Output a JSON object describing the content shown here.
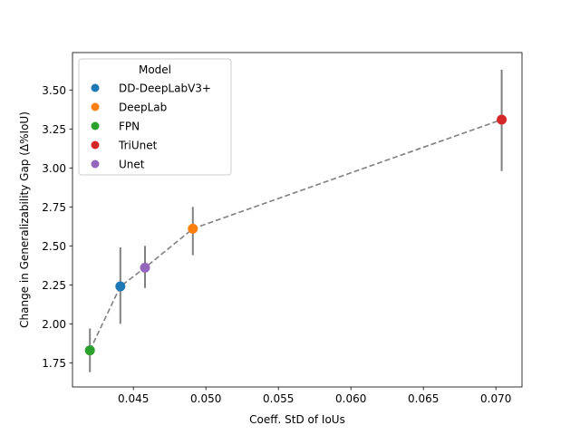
{
  "chart_data": {
    "type": "scatter",
    "xlabel": "Coeff. StD of IoUs",
    "ylabel": "Change in Generalizability Gap (Δ%IoU)",
    "xlim": [
      0.0408,
      0.0718
    ],
    "ylim": [
      1.595,
      3.74
    ],
    "x_ticks": [
      0.045,
      0.05,
      0.055,
      0.06,
      0.065,
      0.07
    ],
    "x_tick_labels": [
      "0.045",
      "0.050",
      "0.055",
      "0.060",
      "0.065",
      "0.070"
    ],
    "y_ticks": [
      1.75,
      2.0,
      2.25,
      2.5,
      2.75,
      3.0,
      3.25,
      3.5
    ],
    "y_tick_labels": [
      "1.75",
      "2.00",
      "2.25",
      "2.50",
      "2.75",
      "3.00",
      "3.25",
      "3.50"
    ],
    "grid": false,
    "legend": {
      "title": "Model",
      "placement": "top-left"
    },
    "line": {
      "style": "dashed",
      "color": "#808080"
    },
    "errorbar_color": "#808080",
    "points": [
      {
        "name": "DD-DeepLabV3+",
        "x": 0.0441,
        "y": 2.24,
        "err_low": 2.0,
        "err_high": 2.49,
        "color": "#1f77b4"
      },
      {
        "name": "DeepLab",
        "x": 0.0491,
        "y": 2.61,
        "err_low": 2.44,
        "err_high": 2.75,
        "color": "#ff7f0e"
      },
      {
        "name": "FPN",
        "x": 0.042,
        "y": 1.83,
        "err_low": 1.69,
        "err_high": 1.97,
        "color": "#2ca02c"
      },
      {
        "name": "TriUnet",
        "x": 0.0704,
        "y": 3.31,
        "err_low": 2.98,
        "err_high": 3.63,
        "color": "#d62728"
      },
      {
        "name": "Unet",
        "x": 0.0458,
        "y": 2.36,
        "err_low": 2.23,
        "err_high": 2.5,
        "color": "#9467bd"
      }
    ]
  }
}
